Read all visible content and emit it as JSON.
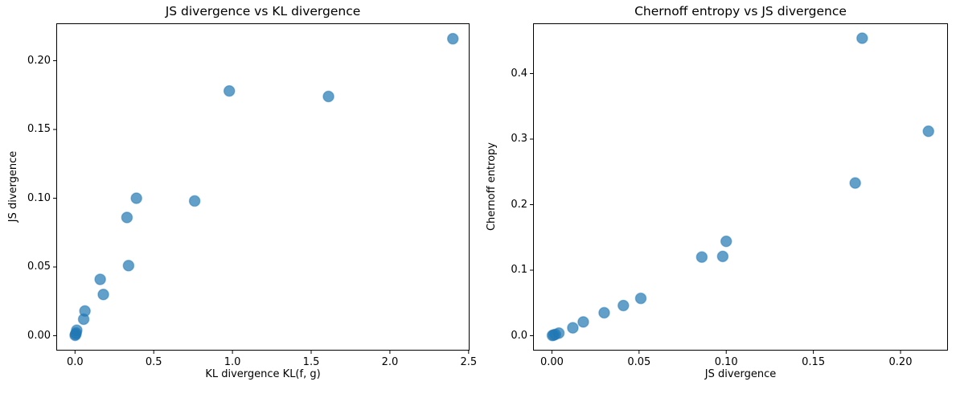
{
  "figure": {
    "background": "#ffffff",
    "axis_color": "#000000",
    "text_color": "#000000"
  },
  "chart_data": [
    {
      "type": "scatter",
      "title": "JS divergence vs KL divergence",
      "xlabel": "KL divergence KL(f, g)",
      "ylabel": "JS divergence",
      "xlim": [
        -0.119,
        2.506
      ],
      "ylim": [
        -0.0108,
        0.2272
      ],
      "xticks": [
        0.0,
        0.5,
        1.0,
        1.5,
        2.0,
        2.5
      ],
      "xtick_labels": [
        "0.0",
        "0.5",
        "1.0",
        "1.5",
        "2.0",
        "2.5"
      ],
      "yticks": [
        0.0,
        0.05,
        0.1,
        0.15,
        0.2
      ],
      "ytick_labels": [
        "0.00",
        "0.05",
        "0.10",
        "0.15",
        "0.20"
      ],
      "grid": false,
      "legend": null,
      "marker_color": "#1f77b4",
      "marker_alpha": 0.7,
      "points": [
        [
          0.001,
          0.0003
        ],
        [
          0.004,
          0.001
        ],
        [
          0.007,
          0.002
        ],
        [
          0.011,
          0.004
        ],
        [
          0.055,
          0.012
        ],
        [
          0.063,
          0.018
        ],
        [
          0.16,
          0.041
        ],
        [
          0.18,
          0.03
        ],
        [
          0.34,
          0.051
        ],
        [
          0.33,
          0.086
        ],
        [
          0.39,
          0.1
        ],
        [
          0.76,
          0.098
        ],
        [
          0.98,
          0.178
        ],
        [
          1.61,
          0.174
        ],
        [
          2.4,
          0.216
        ]
      ]
    },
    {
      "type": "scatter",
      "title": "Chernoff entropy vs JS divergence",
      "xlabel": "JS divergence",
      "ylabel": "Chernoff entropy",
      "xlim": [
        -0.0108,
        0.2272
      ],
      "ylim": [
        -0.0227,
        0.4767
      ],
      "xticks": [
        0.0,
        0.05,
        0.1,
        0.15,
        0.2
      ],
      "xtick_labels": [
        "0.00",
        "0.05",
        "0.10",
        "0.15",
        "0.20"
      ],
      "yticks": [
        0.0,
        0.1,
        0.2,
        0.3,
        0.4
      ],
      "ytick_labels": [
        "0.0",
        "0.1",
        "0.2",
        "0.3",
        "0.4"
      ],
      "grid": false,
      "legend": null,
      "marker_color": "#1f77b4",
      "marker_alpha": 0.7,
      "points": [
        [
          0.0003,
          0.0004
        ],
        [
          0.001,
          0.001
        ],
        [
          0.002,
          0.002
        ],
        [
          0.004,
          0.004
        ],
        [
          0.012,
          0.012
        ],
        [
          0.018,
          0.021
        ],
        [
          0.041,
          0.046
        ],
        [
          0.03,
          0.035
        ],
        [
          0.051,
          0.057
        ],
        [
          0.086,
          0.12
        ],
        [
          0.1,
          0.144
        ],
        [
          0.098,
          0.121
        ],
        [
          0.178,
          0.454
        ],
        [
          0.174,
          0.233
        ],
        [
          0.216,
          0.312
        ]
      ]
    }
  ]
}
